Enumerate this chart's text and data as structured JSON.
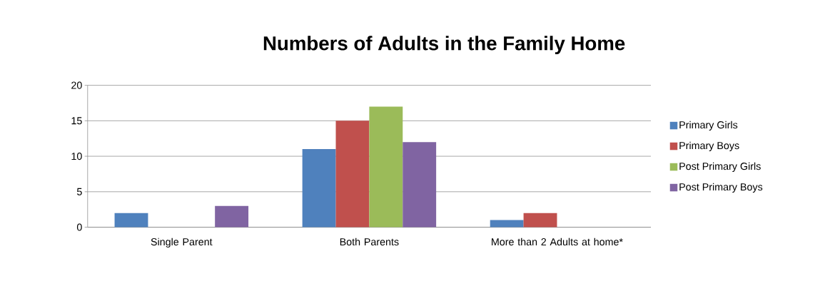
{
  "chart_data": {
    "type": "bar",
    "title": "Numbers of Adults in the Family Home",
    "categories": [
      "Single Parent",
      "Both Parents",
      "More than 2 Adults at home*"
    ],
    "series": [
      {
        "name": "Primary Girls",
        "color": "#4f81bd",
        "values": [
          2,
          11,
          1
        ]
      },
      {
        "name": "Primary Boys",
        "color": "#c0504d",
        "values": [
          0,
          15,
          2
        ]
      },
      {
        "name": "Post Primary Girls",
        "color": "#9bbb59",
        "values": [
          0,
          17,
          0
        ]
      },
      {
        "name": "Post Primary Boys",
        "color": "#8064a2",
        "values": [
          3,
          12,
          0
        ]
      }
    ],
    "ylim": [
      0,
      20
    ],
    "yticks": [
      0,
      5,
      10,
      15,
      20
    ],
    "grid": "y",
    "legend": "right"
  }
}
